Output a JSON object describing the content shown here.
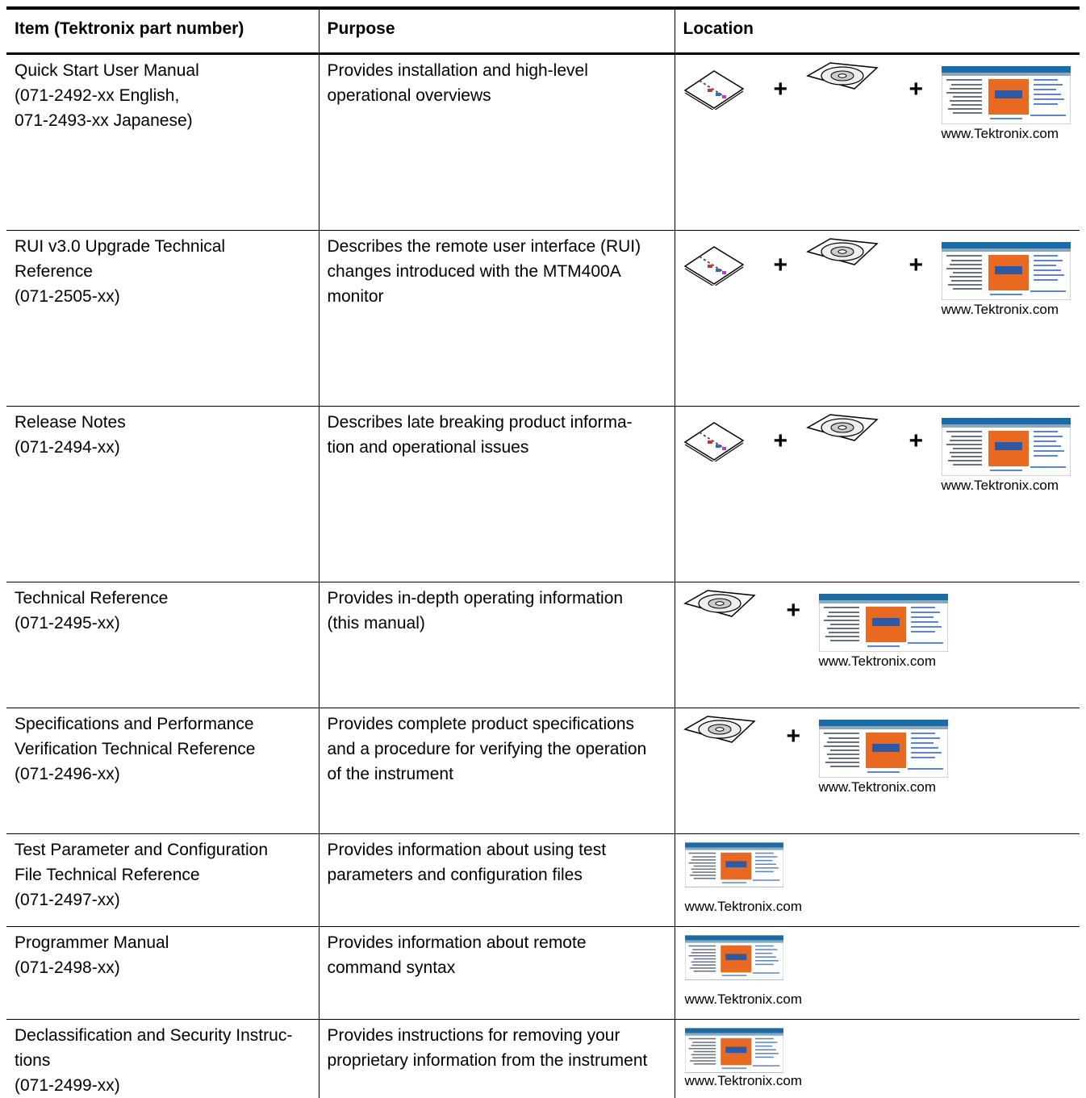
{
  "table": {
    "header": [
      "Item (Tektronix part number)",
      "Purpose",
      "Location"
    ],
    "rows": [
      {
        "item": "Quick Start User Manual\n(071-2492-xx  English,\n071-2493-xx  Japanese)",
        "purpose": "Provides installation and high-level\noperational overviews",
        "location": [
          "+",
          "+",
          "www.Tektronix.com"
        ]
      },
      {
        "item": "RUI v3.0 Upgrade Technical\nReference\n(071-2505-xx)",
        "purpose": "Describes the remote user interface (RUI)\nchanges introduced with the MTM400A\nmonitor",
        "location": [
          "+",
          "+",
          "www.Tektronix.com"
        ]
      },
      {
        "item": "Release Notes\n(071-2494-xx)",
        "purpose": "Describes late breaking product informa-\ntion and operational issues",
        "location": [
          "+",
          "+",
          "www.Tektronix.com"
        ]
      },
      {
        "item": "Technical Reference\n(071-2495-xx)",
        "purpose": "Provides in-depth operating information\n(this manual)",
        "location": [
          "+",
          "www.Tektronix.com"
        ]
      },
      {
        "item": "Specifications and Performance\nVerification Technical Reference\n(071-2496-xx)",
        "purpose": "Provides complete product specifications\nand a procedure for verifying the operation\nof the instrument",
        "location": [
          "+",
          "www.Tektronix.com"
        ]
      },
      {
        "item": "Test Parameter and Configuration\nFile Technical Reference\n(071-2497-xx)",
        "purpose": "Provides information about using test\nparameters and configuration files",
        "location": [
          "www.Tektronix.com"
        ]
      },
      {
        "item": "Programmer Manual\n(071-2498-xx)",
        "purpose": "Provides information about remote\ncommand syntax",
        "location": [
          "www.Tektronix.com"
        ]
      },
      {
        "item": "Declassification and Security Instruc-\ntions\n(071-2499-xx)",
        "purpose": "Provides instructions for removing your\nproprietary information from the instrument",
        "location": [
          "www.Tektronix.com"
        ]
      }
    ]
  }
}
